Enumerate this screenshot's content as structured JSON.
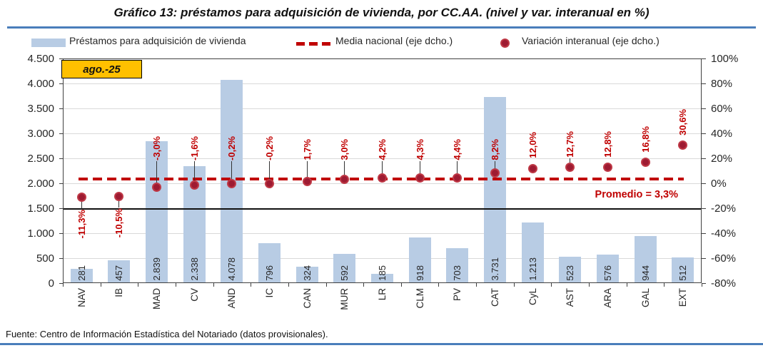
{
  "header": {
    "title": "Gráfico 13: préstamos para adquisición de vivienda, por CC.AA. (nivel y var. interanual en %)",
    "period_badge": "ago.-25"
  },
  "legend": [
    {
      "label": "Préstamos para adquisición de vivienda",
      "symbol": "bar-swatch"
    },
    {
      "label": "Media nacional (eje dcho.)",
      "symbol": "dashed-line"
    },
    {
      "label": "Variación interanual (eje dcho.)",
      "symbol": "dot"
    }
  ],
  "footer": {
    "source": "Fuente: Centro de Información Estadística del Notariado (datos provisionales)."
  },
  "colors": {
    "bar": "#B8CCE4",
    "dashed_line": "#C00000",
    "dot_fill": "#9E1B32",
    "dot_ring": "#BE3845",
    "label_red": "#C00000",
    "badge_bg": "#FFC000",
    "rule_blue": "#4A7EBB",
    "grid": "#D9D9D9",
    "axis": "#404040",
    "text": "#262626"
  },
  "chart_data": {
    "type": "combo-bar-scatter-line",
    "categories": [
      "NAV",
      "IB",
      "MAD",
      "CV",
      "AND",
      "IC",
      "CAN",
      "MUR",
      "LR",
      "CLM",
      "PV",
      "CAT",
      "CyL",
      "AST",
      "ARA",
      "GAL",
      "EXT"
    ],
    "series": [
      {
        "name": "Préstamos para adquisición de vivienda",
        "type": "bar",
        "axis": "left",
        "values": [
          281,
          457,
          2839,
          2338,
          4078,
          796,
          324,
          592,
          185,
          918,
          703,
          3731,
          1213,
          523,
          576,
          944,
          512
        ],
        "value_labels": [
          "281",
          "457",
          "2.839",
          "2.338",
          "4.078",
          "796",
          "324",
          "592",
          "185",
          "918",
          "703",
          "3.731",
          "1.213",
          "523",
          "576",
          "944",
          "512"
        ]
      },
      {
        "name": "Variación interanual (eje dcho.)",
        "type": "scatter",
        "axis": "right",
        "unit": "%",
        "values": [
          -11.3,
          -10.5,
          -3.0,
          -1.6,
          -0.2,
          -0.2,
          1.7,
          3.0,
          4.2,
          4.3,
          4.4,
          8.2,
          12.0,
          12.7,
          12.8,
          16.8,
          30.6
        ],
        "value_labels": [
          "-11,3%",
          "-10,5%",
          "-3,0%",
          "-1,6%",
          "-0,2%",
          "-0,2%",
          "1,7%",
          "3,0%",
          "4,2%",
          "4,3%",
          "4,4%",
          "8,2%",
          "12,0%",
          "12,7%",
          "12,8%",
          "16,8%",
          "30,6%"
        ],
        "labels_below_dot": [
          true,
          true,
          false,
          false,
          false,
          false,
          false,
          false,
          false,
          false,
          false,
          false,
          false,
          false,
          false,
          false,
          false
        ],
        "leader_lines": [
          true,
          true,
          true,
          true,
          true,
          true,
          true,
          true,
          true,
          true,
          true,
          true,
          false,
          true,
          false,
          false,
          false
        ]
      },
      {
        "name": "Media nacional (eje dcho.)",
        "type": "dashed-line",
        "axis": "right",
        "value": 3.3,
        "annotation": "Promedio = 3,3%"
      }
    ],
    "left_axis": {
      "min": 0,
      "max": 4500,
      "tick_step": 500,
      "tick_labels": [
        "0",
        "500",
        "1.000",
        "1.500",
        "2.000",
        "2.500",
        "3.000",
        "3.500",
        "4.000",
        "4.500"
      ]
    },
    "right_axis": {
      "min": -80,
      "max": 100,
      "tick_step": 20,
      "tick_labels": [
        "-80%",
        "-60%",
        "-40%",
        "-20%",
        "0%",
        "20%",
        "40%",
        "60%",
        "80%",
        "100%"
      ]
    },
    "gridlines": "horizontal",
    "emphasized_gridline_left_value": 1500
  }
}
